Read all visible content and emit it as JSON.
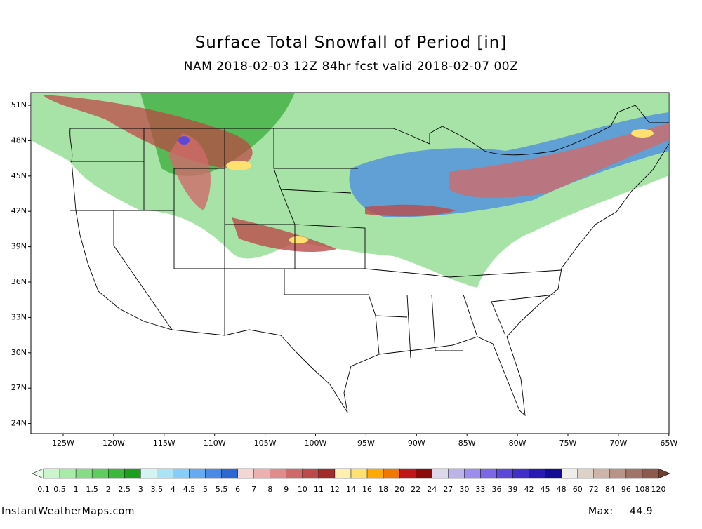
{
  "header": {
    "title": "Surface Total Snowfall of Period [in]",
    "subtitle": "NAM 2018-02-03 12Z 84hr fcst valid 2018-02-07 00Z"
  },
  "map": {
    "lat_labels": [
      "51N",
      "48N",
      "45N",
      "42N",
      "39N",
      "36N",
      "33N",
      "30N",
      "27N",
      "24N"
    ],
    "lon_labels": [
      "125W",
      "120W",
      "115W",
      "110W",
      "105W",
      "100W",
      "95W",
      "90W",
      "85W",
      "80W",
      "75W",
      "70W",
      "65W"
    ]
  },
  "colorbar": {
    "levels": [
      0.1,
      0.5,
      1,
      1.5,
      2,
      2.5,
      3,
      3.5,
      4,
      4.5,
      5,
      5.5,
      6,
      7,
      8,
      9,
      10,
      11,
      12,
      14,
      16,
      18,
      20,
      22,
      24,
      27,
      30,
      33,
      36,
      39,
      42,
      45,
      48,
      60,
      72,
      84,
      96,
      108,
      120
    ],
    "colors": [
      "#e8fbe8",
      "#ccf5cc",
      "#a8eaa8",
      "#86dc86",
      "#5ecc5e",
      "#3cb83c",
      "#1e9e1e",
      "#d4f4f4",
      "#aae4f4",
      "#88ccf8",
      "#66aaf0",
      "#4a8ae4",
      "#2e66d2",
      "#f4d6d6",
      "#ecb0b0",
      "#e08c8c",
      "#d06a6a",
      "#bc4a4a",
      "#a02c2c",
      "#fff0b0",
      "#ffe070",
      "#ffaa00",
      "#f07800",
      "#c01818",
      "#8c0c0c",
      "#dcd8ec",
      "#bcb4e8",
      "#9c8cec",
      "#7c68e4",
      "#5c48d8",
      "#4030c8",
      "#2818b4",
      "#140c94",
      "#f0eeea",
      "#ddd2c8",
      "#ccb4a8",
      "#b89488",
      "#a07468",
      "#8c5a4c",
      "#6e3e30"
    ]
  },
  "footer": {
    "source": "InstantWeatherMaps.com",
    "max_label": "Max:",
    "max_value": 44.9
  }
}
